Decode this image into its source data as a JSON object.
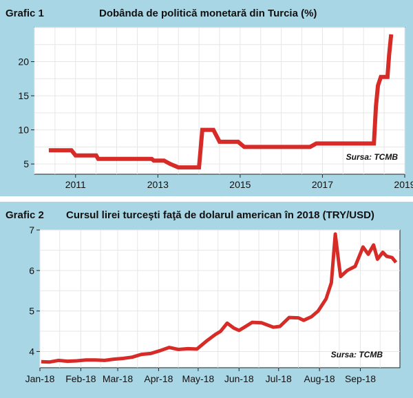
{
  "chart_data": [
    {
      "type": "line",
      "label": "Grafic 1",
      "title": "Dobânda de politică monetară din Turcia (%)",
      "source": "Sursa: TCMB",
      "xlim": [
        2010.0,
        2019.0
      ],
      "ylim": [
        3.5,
        25
      ],
      "x_ticks": [
        2011,
        2013,
        2015,
        2017,
        2019
      ],
      "y_ticks": [
        5,
        10,
        15,
        20
      ],
      "grid": true,
      "color": "#d62b27",
      "series": [
        {
          "x": [
            2010.35,
            2010.9,
            2011.0,
            2011.5,
            2011.55,
            2012.85,
            2012.9,
            2013.15,
            2013.3,
            2013.5,
            2014.0,
            2014.08,
            2014.35,
            2014.5,
            2014.95,
            2015.1,
            2016.7,
            2016.85,
            2018.25,
            2018.3,
            2018.35,
            2018.42,
            2018.58,
            2018.62,
            2018.67
          ],
          "y": [
            7.0,
            7.0,
            6.25,
            6.25,
            5.75,
            5.75,
            5.5,
            5.5,
            5.0,
            4.5,
            4.5,
            10.0,
            10.0,
            8.25,
            8.25,
            7.5,
            7.5,
            8.0,
            8.0,
            13.5,
            16.5,
            17.75,
            17.75,
            21.0,
            24.0
          ]
        }
      ]
    },
    {
      "type": "line",
      "label": "Grafic 2",
      "title": "Cursul lirei turceşti faţă de dolarul american în 2018 (TRY/USD)",
      "source": "Sursa: TCMB",
      "xlim": [
        "2018-01-01",
        "2018-10-01"
      ],
      "ylim": [
        3.6,
        7.0
      ],
      "x_ticks": [
        "Jan-18",
        "Feb-18",
        "Mar-18",
        "Apr-18",
        "May-18",
        "Jun-18",
        "Jul-18",
        "Aug-18",
        "Sep-18"
      ],
      "y_ticks": [
        4,
        5,
        6,
        7
      ],
      "grid": true,
      "color": "#d62b27",
      "series": [
        {
          "x": [
            "2018-01-02",
            "2018-01-08",
            "2018-01-15",
            "2018-01-22",
            "2018-01-29",
            "2018-02-05",
            "2018-02-12",
            "2018-02-19",
            "2018-02-26",
            "2018-03-05",
            "2018-03-12",
            "2018-03-19",
            "2018-03-26",
            "2018-04-02",
            "2018-04-09",
            "2018-04-16",
            "2018-04-23",
            "2018-04-30",
            "2018-05-07",
            "2018-05-14",
            "2018-05-18",
            "2018-05-23",
            "2018-05-28",
            "2018-06-01",
            "2018-06-05",
            "2018-06-11",
            "2018-06-18",
            "2018-06-22",
            "2018-06-27",
            "2018-07-02",
            "2018-07-09",
            "2018-07-16",
            "2018-07-20",
            "2018-07-26",
            "2018-07-31",
            "2018-08-06",
            "2018-08-10",
            "2018-08-13",
            "2018-08-15",
            "2018-08-17",
            "2018-08-22",
            "2018-08-28",
            "2018-09-03",
            "2018-09-07",
            "2018-09-11",
            "2018-09-14",
            "2018-09-18",
            "2018-09-21",
            "2018-09-25",
            "2018-09-28"
          ],
          "y": [
            3.75,
            3.74,
            3.78,
            3.76,
            3.77,
            3.79,
            3.79,
            3.78,
            3.81,
            3.83,
            3.86,
            3.93,
            3.95,
            4.02,
            4.1,
            4.05,
            4.07,
            4.06,
            4.25,
            4.42,
            4.5,
            4.7,
            4.58,
            4.52,
            4.6,
            4.72,
            4.71,
            4.66,
            4.6,
            4.62,
            4.84,
            4.83,
            4.77,
            4.86,
            5.0,
            5.3,
            5.7,
            6.9,
            6.35,
            5.85,
            6.0,
            6.1,
            6.58,
            6.4,
            6.63,
            6.28,
            6.45,
            6.35,
            6.32,
            6.2
          ]
        }
      ]
    }
  ]
}
